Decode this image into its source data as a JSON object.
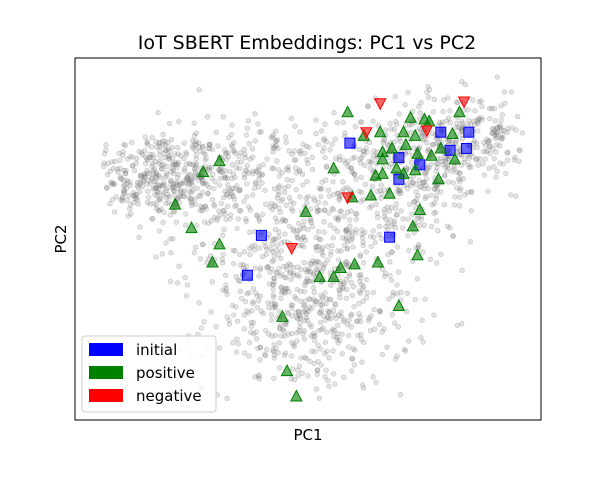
{
  "chart_data": {
    "type": "scatter",
    "title": "IoT SBERT Embeddings: PC1 vs PC2",
    "xlabel": "PC1",
    "ylabel": "PC2",
    "xlim": [
      0,
      100
    ],
    "ylim": [
      0,
      100
    ],
    "grid": false,
    "ticks_visible": false,
    "legend_position": "bottom-left",
    "legend": [
      {
        "label": "initial",
        "color": "#0000ff"
      },
      {
        "label": "positive",
        "color": "#008000"
      },
      {
        "label": "negative",
        "color": "#ff0000"
      }
    ],
    "background_cloud": {
      "description": "dense cloud of light grey translucent points",
      "color": "#808080",
      "clusters": [
        {
          "cx": 16,
          "cy": 68,
          "sx": 7,
          "sy": 6,
          "n": 260
        },
        {
          "cx": 27,
          "cy": 64,
          "sx": 8,
          "sy": 6,
          "n": 180
        },
        {
          "cx": 50,
          "cy": 28,
          "sx": 11,
          "sy": 10,
          "n": 420
        },
        {
          "cx": 45,
          "cy": 48,
          "sx": 10,
          "sy": 10,
          "n": 240
        },
        {
          "cx": 74,
          "cy": 72,
          "sx": 9,
          "sy": 8,
          "n": 300
        },
        {
          "cx": 86,
          "cy": 78,
          "sx": 8,
          "sy": 7,
          "n": 200
        },
        {
          "cx": 62,
          "cy": 58,
          "sx": 9,
          "sy": 10,
          "n": 200
        },
        {
          "cx": 38,
          "cy": 72,
          "sx": 10,
          "sy": 7,
          "n": 160
        }
      ]
    },
    "series": [
      {
        "name": "initial",
        "marker": "square",
        "color": "#0000ff",
        "points": [
          [
            78.5,
            79.5
          ],
          [
            84.5,
            79.5
          ],
          [
            80.5,
            74.5
          ],
          [
            84.0,
            75.0
          ],
          [
            69.5,
            72.5
          ],
          [
            74.0,
            70.5
          ],
          [
            59.0,
            76.5
          ],
          [
            69.5,
            66.5
          ],
          [
            40.0,
            51.0
          ],
          [
            67.5,
            50.5
          ],
          [
            37.0,
            40.0
          ]
        ]
      },
      {
        "name": "positive",
        "marker": "triangle-up",
        "color": "#008000",
        "points": [
          [
            58.5,
            85.0
          ],
          [
            72.0,
            83.5
          ],
          [
            75.0,
            83.0
          ],
          [
            65.5,
            79.5
          ],
          [
            70.5,
            79.5
          ],
          [
            73.0,
            78.5
          ],
          [
            76.0,
            82.5
          ],
          [
            81.0,
            79.0
          ],
          [
            82.5,
            85.0
          ],
          [
            62.0,
            78.5
          ],
          [
            66.0,
            74.0
          ],
          [
            68.0,
            75.0
          ],
          [
            71.0,
            76.0
          ],
          [
            73.5,
            73.5
          ],
          [
            76.5,
            73.0
          ],
          [
            78.5,
            75.0
          ],
          [
            81.5,
            72.0
          ],
          [
            66.0,
            72.0
          ],
          [
            69.0,
            69.5
          ],
          [
            66.0,
            68.0
          ],
          [
            70.5,
            68.0
          ],
          [
            73.0,
            69.0
          ],
          [
            78.0,
            66.5
          ],
          [
            64.5,
            67.5
          ],
          [
            55.5,
            69.5
          ],
          [
            59.5,
            61.5
          ],
          [
            63.5,
            62.0
          ],
          [
            67.5,
            62.5
          ],
          [
            74.0,
            58.0
          ],
          [
            72.5,
            53.5
          ],
          [
            73.5,
            45.5
          ],
          [
            57.0,
            42.0
          ],
          [
            65.0,
            43.5
          ],
          [
            60.0,
            43.0
          ],
          [
            55.5,
            39.5
          ],
          [
            52.5,
            39.5
          ],
          [
            31.0,
            71.5
          ],
          [
            27.5,
            68.5
          ],
          [
            21.5,
            59.5
          ],
          [
            25.0,
            53.0
          ],
          [
            31.0,
            48.5
          ],
          [
            29.5,
            43.5
          ],
          [
            49.5,
            57.5
          ],
          [
            69.5,
            31.5
          ],
          [
            44.5,
            28.5
          ],
          [
            45.5,
            13.5
          ],
          [
            47.5,
            6.5
          ]
        ]
      },
      {
        "name": "negative",
        "marker": "triangle-down",
        "color": "#ff0000",
        "points": [
          [
            65.5,
            87.5
          ],
          [
            62.5,
            79.5
          ],
          [
            75.5,
            80.0
          ],
          [
            83.5,
            88.0
          ],
          [
            58.5,
            61.5
          ],
          [
            46.5,
            47.5
          ]
        ]
      }
    ]
  }
}
